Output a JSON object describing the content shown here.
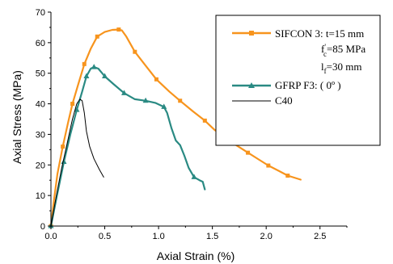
{
  "chart_data": {
    "type": "line",
    "xlabel": "Axial Strain (%)",
    "ylabel": "Axial Stress (MPa)",
    "xlim": [
      0,
      2.75
    ],
    "ylim": [
      0,
      70
    ],
    "xticks": [
      "0.0",
      "0.5",
      "1.0",
      "1.5",
      "2.0",
      "2.5"
    ],
    "yticks": [
      "0",
      "10",
      "20",
      "30",
      "40",
      "50",
      "60",
      "70"
    ],
    "grid": false,
    "legend_position": "top-right",
    "legend": {
      "sifcon_line1": "SIFCON 3: t=15 mm",
      "sifcon_fc_main": "f",
      "sifcon_fc_sup": "'",
      "sifcon_fc_sub": "c",
      "sifcon_fc_rest": "=85 MPa",
      "sifcon_lf_main": "l",
      "sifcon_lf_sub": "f",
      "sifcon_lf_rest": "=30 mm",
      "gfrp": "GFRP F3: ( 0º )",
      "c40": "C40"
    },
    "series": [
      {
        "name": "SIFCON 3",
        "color": "#f7941d",
        "marker": "square",
        "markers": [
          [
            0.0,
            0
          ],
          [
            0.11,
            26
          ],
          [
            0.2,
            40
          ],
          [
            0.31,
            53
          ],
          [
            0.43,
            62
          ],
          [
            0.63,
            64.3
          ],
          [
            0.78,
            57
          ],
          [
            0.98,
            48
          ],
          [
            1.2,
            41
          ],
          [
            1.43,
            34.5
          ],
          [
            1.62,
            29
          ],
          [
            1.83,
            24
          ],
          [
            2.02,
            19.8
          ],
          [
            2.2,
            16.5
          ]
        ],
        "points": [
          [
            0.0,
            0
          ],
          [
            0.03,
            9
          ],
          [
            0.06,
            17
          ],
          [
            0.11,
            26
          ],
          [
            0.16,
            34
          ],
          [
            0.2,
            40
          ],
          [
            0.25,
            46
          ],
          [
            0.31,
            53
          ],
          [
            0.37,
            58
          ],
          [
            0.43,
            62
          ],
          [
            0.5,
            63.5
          ],
          [
            0.57,
            64.2
          ],
          [
            0.63,
            64.3
          ],
          [
            0.66,
            64
          ],
          [
            0.7,
            62
          ],
          [
            0.78,
            57
          ],
          [
            0.88,
            52.5
          ],
          [
            0.98,
            48
          ],
          [
            1.1,
            44
          ],
          [
            1.2,
            41
          ],
          [
            1.32,
            37.5
          ],
          [
            1.43,
            34.5
          ],
          [
            1.52,
            31.5
          ],
          [
            1.62,
            29
          ],
          [
            1.72,
            26.5
          ],
          [
            1.83,
            24
          ],
          [
            1.93,
            21.8
          ],
          [
            2.02,
            19.8
          ],
          [
            2.12,
            18
          ],
          [
            2.2,
            16.5
          ],
          [
            2.32,
            15.2
          ]
        ]
      },
      {
        "name": "GFRP F3",
        "color": "#2a8a83",
        "marker": "triangle",
        "markers": [
          [
            0.0,
            0
          ],
          [
            0.12,
            21
          ],
          [
            0.24,
            38
          ],
          [
            0.33,
            49
          ],
          [
            0.4,
            52
          ],
          [
            0.5,
            49
          ],
          [
            0.68,
            43.5
          ],
          [
            0.88,
            41
          ],
          [
            1.05,
            39
          ],
          [
            1.33,
            16
          ]
        ],
        "points": [
          [
            0.0,
            0
          ],
          [
            0.05,
            9
          ],
          [
            0.12,
            21
          ],
          [
            0.18,
            30
          ],
          [
            0.24,
            38
          ],
          [
            0.29,
            44
          ],
          [
            0.33,
            49
          ],
          [
            0.37,
            51.5
          ],
          [
            0.4,
            52
          ],
          [
            0.44,
            51.5
          ],
          [
            0.5,
            49
          ],
          [
            0.58,
            46.5
          ],
          [
            0.68,
            43.5
          ],
          [
            0.78,
            41.5
          ],
          [
            0.88,
            41
          ],
          [
            0.97,
            40.3
          ],
          [
            1.05,
            39
          ],
          [
            1.08,
            37
          ],
          [
            1.12,
            32
          ],
          [
            1.16,
            28
          ],
          [
            1.2,
            26.5
          ],
          [
            1.24,
            23
          ],
          [
            1.28,
            19
          ],
          [
            1.33,
            16
          ],
          [
            1.38,
            15
          ],
          [
            1.41,
            14.5
          ],
          [
            1.43,
            12
          ]
        ]
      },
      {
        "name": "C40",
        "color": "#000000",
        "marker": "none",
        "markers": [],
        "points": [
          [
            0.0,
            0
          ],
          [
            0.05,
            10
          ],
          [
            0.1,
            19
          ],
          [
            0.15,
            27
          ],
          [
            0.2,
            35
          ],
          [
            0.24,
            40
          ],
          [
            0.27,
            41.5
          ],
          [
            0.29,
            41
          ],
          [
            0.31,
            37
          ],
          [
            0.33,
            31
          ],
          [
            0.36,
            26
          ],
          [
            0.4,
            22
          ],
          [
            0.45,
            18.5
          ],
          [
            0.49,
            16
          ]
        ]
      }
    ]
  }
}
